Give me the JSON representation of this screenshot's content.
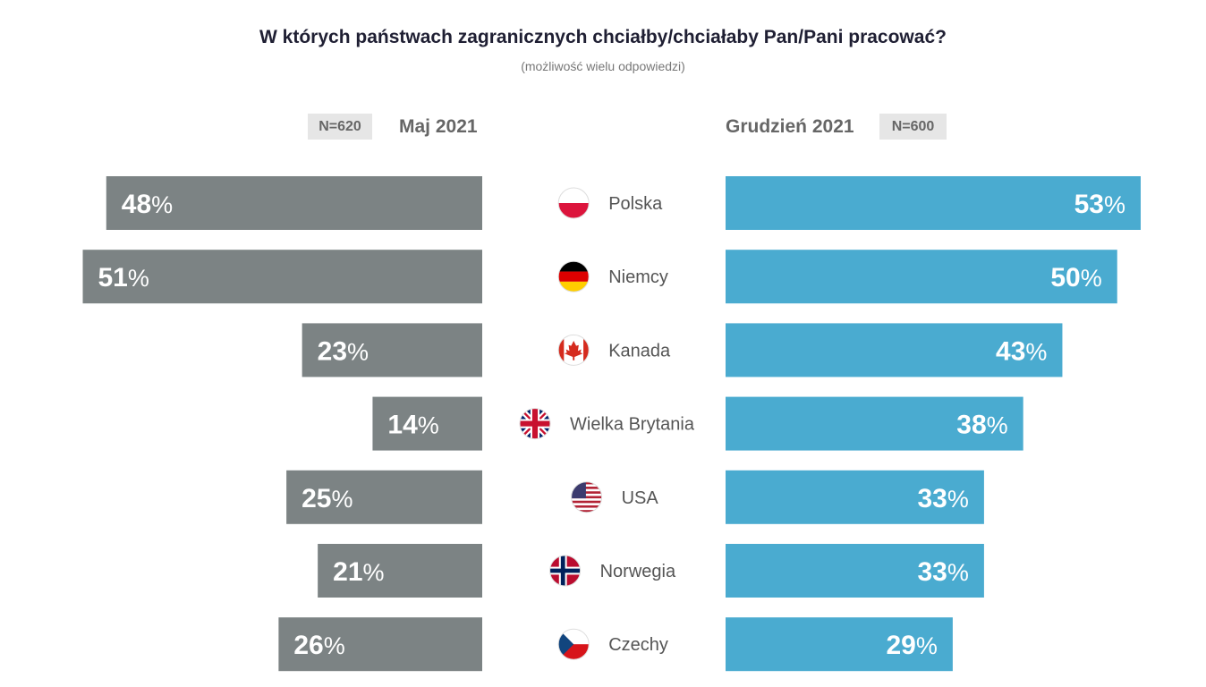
{
  "title": "W których państwach zagranicznych chciałby/chciałaby Pan/Pani pracować?",
  "subtitle": "(możliwość wielu odpowiedzi)",
  "left": {
    "label": "Maj 2021",
    "n": "N=620",
    "color": "#7c8384"
  },
  "right": {
    "label": "Grudzień 2021",
    "n": "N=600",
    "color": "#4aabd0"
  },
  "chart_data": {
    "type": "bar",
    "orientation": "horizontal-butterfly",
    "unit": "%",
    "categories": [
      "Polska",
      "Niemcy",
      "Kanada",
      "Wielka Brytania",
      "USA",
      "Norwegia",
      "Czechy"
    ],
    "flags": [
      "flag-poland-icon",
      "flag-germany-icon",
      "flag-canada-icon",
      "flag-uk-icon",
      "flag-usa-icon",
      "flag-norway-icon",
      "flag-czechia-icon"
    ],
    "series": [
      {
        "name": "Maj 2021",
        "values": [
          48,
          51,
          23,
          14,
          25,
          21,
          26
        ]
      },
      {
        "name": "Grudzień 2021",
        "values": [
          53,
          50,
          43,
          38,
          33,
          33,
          29
        ]
      }
    ],
    "xlim": [
      0,
      53
    ]
  }
}
